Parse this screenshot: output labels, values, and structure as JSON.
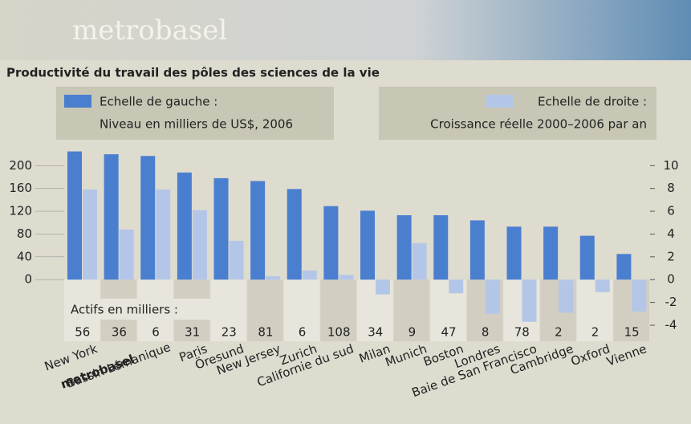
{
  "chart_data": {
    "type": "bar",
    "logo": "metrobasel",
    "title": "Productivité du travail des pôles des sciences de la vie",
    "categories": [
      "New York",
      "metrobasel",
      "Bassin Lémanique",
      "Paris",
      "Öresund",
      "New Jersey",
      "Zurich",
      "Californie du sud",
      "Milan",
      "Munich",
      "Boston",
      "Londres",
      "Baie de San Francisco",
      "Cambridge",
      "Oxford",
      "Vienne"
    ],
    "series": [
      {
        "name": "Echelle de gauche :",
        "description": "Niveau en milliers de US$, 2006",
        "color": "#4a7fcf",
        "values": [
          225,
          220,
          217,
          188,
          178,
          173,
          159,
          129,
          121,
          113,
          113,
          104,
          93,
          93,
          77,
          45
        ]
      },
      {
        "name": "Echelle de droite :",
        "description": "Croissance réelle 2000–2006 par an",
        "color": "#b4c6e8",
        "axis": "y2",
        "values": [
          7.9,
          4.4,
          7.9,
          6.1,
          3.4,
          0.3,
          0.8,
          0.4,
          -1.3,
          3.2,
          -1.2,
          -3.0,
          -3.7,
          -2.9,
          -1.1,
          -2.8
        ]
      }
    ],
    "workers": {
      "label": "Actifs en milliers :",
      "values": [
        56,
        36,
        6,
        31,
        23,
        81,
        6,
        108,
        34,
        9,
        47,
        8,
        78,
        2,
        2,
        15
      ]
    },
    "ylim": [
      -80,
      230
    ],
    "yticks": [
      0,
      40,
      80,
      120,
      160,
      200
    ],
    "y2lim": [
      -4,
      11.5
    ],
    "y2ticks": [
      -4,
      -2,
      0,
      2,
      4,
      6,
      8,
      10
    ]
  }
}
